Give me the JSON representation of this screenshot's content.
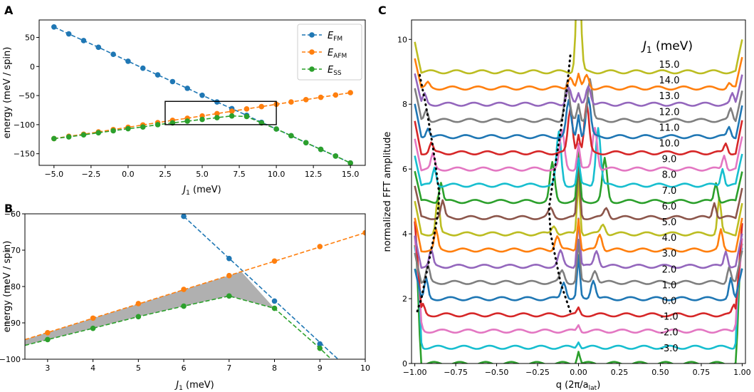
{
  "colors": {
    "E_FM": "#1f77b4",
    "E_AFM": "#ff7f0e",
    "E_SS": "#2ca02c",
    "shade": "#b0b0b0",
    "cycle": [
      "#1f77b4",
      "#ff7f0e",
      "#2ca02c",
      "#d62728",
      "#9467bd",
      "#8c564b",
      "#e377c2",
      "#7f7f7f",
      "#bcbd22",
      "#17becf"
    ]
  },
  "chart_data": [
    {
      "panel": "A",
      "type": "line",
      "xlabel_main": "J",
      "xlabel_sub": "1",
      "xlabel_unit": " (meV)",
      "ylabel": "energy (meV / spin)",
      "xlim": [
        -6,
        16
      ],
      "ylim": [
        -170,
        80
      ],
      "xticks": [
        -5.0,
        -2.5,
        0.0,
        2.5,
        5.0,
        7.5,
        10.0,
        12.5,
        15.0
      ],
      "xtick_labels": [
        "−5.0",
        "−2.5",
        "0.0",
        "2.5",
        "5.0",
        "7.5",
        "10.0",
        "12.5",
        "15.0"
      ],
      "yticks": [
        50,
        0,
        -50,
        -100,
        -150
      ],
      "ytick_labels": [
        "50",
        "0",
        "−50",
        "−100",
        "−150"
      ],
      "legend": [
        {
          "key": "E_FM",
          "base": "E",
          "sub": "FM"
        },
        {
          "key": "E_AFM",
          "base": "E",
          "sub": "AFM"
        },
        {
          "key": "E_SS",
          "base": "E",
          "sub": "SS"
        }
      ],
      "x": [
        -5,
        -4,
        -3,
        -2,
        -1,
        0,
        1,
        2,
        3,
        4,
        5,
        6,
        7,
        8,
        9,
        10,
        11,
        12,
        13,
        14,
        15
      ],
      "series": [
        {
          "key": "E_FM",
          "values": [
            68,
            56,
            44.5,
            33,
            21,
            9,
            -3,
            -14.5,
            -26,
            -37.5,
            -49.5,
            -61,
            -72.5,
            -84,
            -96,
            -107.5,
            -119,
            -131,
            -142.5,
            -154,
            -166
          ]
        },
        {
          "key": "E_AFM",
          "values": [
            -124,
            -120,
            -116.5,
            -112.5,
            -108.5,
            -104.5,
            -100.5,
            -96.5,
            -92.5,
            -89,
            -85,
            -81,
            -77,
            -73,
            -69,
            -65,
            -61,
            -57,
            -53,
            -49,
            -45
          ]
        },
        {
          "key": "E_SS",
          "values": [
            -124,
            -121,
            -117.5,
            -114,
            -110.5,
            -107,
            -104,
            -100,
            -97,
            -94,
            -91,
            -88,
            -85,
            -86,
            -97,
            -107.5,
            -119,
            -131,
            -142.5,
            -154,
            -166
          ]
        }
      ],
      "inset_box": {
        "x": [
          2.5,
          10.0
        ],
        "y": [
          -100,
          -60
        ]
      }
    },
    {
      "panel": "B",
      "type": "line",
      "xlabel_main": "J",
      "xlabel_sub": "1",
      "xlabel_unit": " (meV)",
      "ylabel": "energy (meV / spin)",
      "xlim": [
        2.5,
        10
      ],
      "ylim": [
        -100,
        -60
      ],
      "xticks": [
        3,
        4,
        5,
        6,
        7,
        8,
        9,
        10
      ],
      "xtick_labels": [
        "3",
        "4",
        "5",
        "6",
        "7",
        "8",
        "9",
        "10"
      ],
      "yticks": [
        -60,
        -70,
        -80,
        -90,
        -100
      ],
      "ytick_labels": [
        "−60",
        "−70",
        "−80",
        "−90",
        "−100"
      ],
      "fm_points": {
        "x": [
          6,
          7,
          8,
          9
        ],
        "y": [
          -60.7,
          -72.3,
          -84.0,
          -95.8
        ]
      },
      "fm_line": {
        "x": [
          6,
          9.4
        ],
        "y": [
          -60.7,
          -100
        ]
      },
      "afm_points": {
        "x": [
          3,
          4,
          5,
          6,
          7,
          8,
          9,
          10
        ],
        "y": [
          -92.7,
          -88.7,
          -84.7,
          -80.8,
          -77.0,
          -73.0,
          -69.0,
          -65.2
        ]
      },
      "afm_line": {
        "x": [
          2.5,
          10
        ],
        "y": [
          -94.6,
          -65.2
        ]
      },
      "ss_points": {
        "x": [
          3,
          4,
          5,
          6,
          7,
          8,
          9
        ],
        "y": [
          -94.6,
          -91.5,
          -88.3,
          -85.4,
          -82.6,
          -86.0,
          -97.0
        ]
      },
      "ss_line": {
        "x": [
          2.5,
          3,
          4,
          5,
          6,
          7,
          8,
          9,
          9.25
        ],
        "y": [
          -96.2,
          -94.6,
          -91.5,
          -88.3,
          -85.4,
          -82.6,
          -86.0,
          -97.0,
          -100
        ]
      }
    },
    {
      "panel": "C",
      "type": "line",
      "xlabel": "q (2π/a",
      "xlabel_sub": "lat",
      "xlabel_close": ")",
      "ylabel": "normalized FFT amplitude",
      "xlim": [
        -1.02,
        1.02
      ],
      "ylim": [
        0,
        10.6
      ],
      "xticks": [
        -1.0,
        -0.75,
        -0.5,
        -0.25,
        0.0,
        0.25,
        0.5,
        0.75,
        1.0
      ],
      "xtick_labels": [
        "−1.00",
        "−0.75",
        "−0.50",
        "−0.25",
        "0.00",
        "0.25",
        "0.50",
        "0.75",
        "1.00"
      ],
      "yticks": [
        0,
        2,
        4,
        6,
        8,
        10
      ],
      "ytick_labels": [
        "0",
        "2",
        "4",
        "6",
        "8",
        "10"
      ],
      "legend_title_main": "J",
      "legend_title_sub": "1",
      "legend_title_unit": " (meV)",
      "J1_labels": [
        "15.0",
        "14.0",
        "13.0",
        "12.0",
        "11.0",
        "10.0",
        "9.0",
        "8.0",
        "7.0",
        "6.0",
        "5.0",
        "4.0",
        "3.0",
        "2.0",
        "1.0",
        "0.0",
        "-1.0",
        "-2.0",
        "-3.0"
      ],
      "offsets": [
        9.0,
        8.5,
        8.0,
        7.5,
        7.0,
        6.5,
        6.0,
        5.5,
        5.0,
        4.5,
        4.0,
        3.5,
        3.0,
        2.5,
        2.0,
        1.5,
        1.0,
        0.5,
        0.0
      ],
      "peak_q": [
        0.0,
        0.05,
        0.06,
        0.07,
        0.06,
        0.05,
        0.1,
        0.12,
        0.16,
        0.17,
        0.15,
        0.13,
        0.11,
        0.1,
        0.09,
        0.0,
        0.0,
        0.0,
        0.0
      ],
      "peak_h": [
        1.5,
        0.4,
        0.6,
        1.3,
        1.2,
        1.5,
        1.3,
        1.8,
        1.3,
        0.3,
        0.3,
        0.5,
        0.5,
        0.4,
        0.6,
        0.0,
        0.0,
        0.0,
        0.0
      ],
      "edge_q": [
        0.98,
        0.92,
        0.94,
        0.93,
        0.92,
        0.9,
        0.89,
        0.88,
        0.84,
        0.83,
        0.86,
        0.87,
        0.9,
        0.92,
        0.93,
        0.95,
        0.97,
        0.98,
        0.99
      ],
      "edge_h": [
        0.0,
        0.15,
        0.3,
        0.35,
        0.3,
        0.3,
        0.45,
        0.55,
        0.6,
        0.5,
        1.1,
        0.6,
        0.5,
        0.5,
        0.6,
        0.3,
        0.4,
        1.0,
        1.2
      ],
      "central_h": [
        1.5,
        0.4,
        0.3,
        0.5,
        0.7,
        0.6,
        0.8,
        0.8,
        1.5,
        1.7,
        1.7,
        1.0,
        1.5,
        1.3,
        1.3,
        0.2,
        0.2,
        0.2,
        0.4
      ],
      "dotted_left": {
        "x": [
          -0.97,
          -0.95,
          -0.93,
          -0.91,
          -0.89,
          -0.87,
          -0.85,
          -0.86,
          -0.88,
          -0.9,
          -0.92,
          -0.94,
          -0.96,
          -0.98,
          -0.99
        ],
        "y": [
          8.9,
          8.4,
          7.9,
          7.3,
          6.7,
          6.0,
          5.2,
          4.6,
          4.0,
          3.5,
          3.0,
          2.5,
          2.0,
          1.7,
          1.5
        ]
      },
      "dotted_right": {
        "x": [
          -0.05,
          -0.07,
          -0.1,
          -0.13,
          -0.16,
          -0.18,
          -0.17,
          -0.15,
          -0.13,
          -0.11,
          -0.09,
          -0.07,
          -0.05
        ],
        "y": [
          9.5,
          8.5,
          7.5,
          6.5,
          5.5,
          4.8,
          4.0,
          3.5,
          3.0,
          2.5,
          2.2,
          1.9,
          1.6
        ]
      }
    }
  ],
  "panel_labels": {
    "a": "A",
    "b": "B",
    "c": "C"
  }
}
